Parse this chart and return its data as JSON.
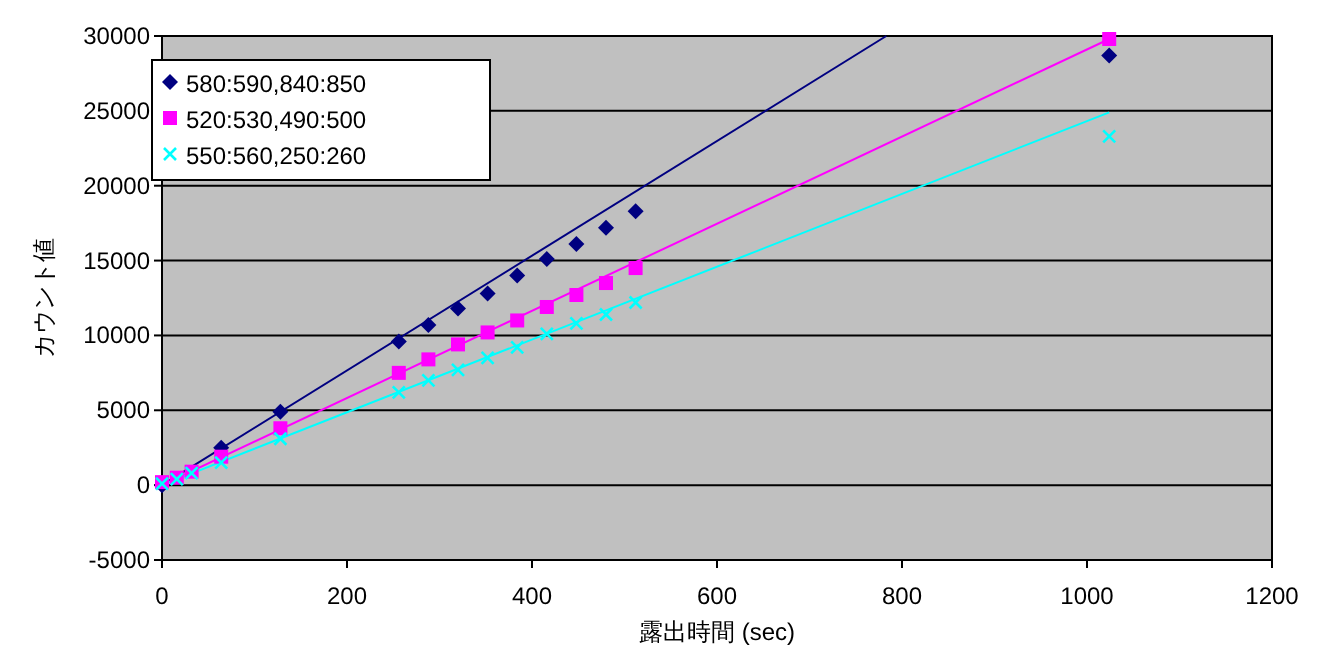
{
  "chart_data": {
    "type": "scatter",
    "xlabel": "露出時間 (sec)",
    "ylabel": "カウント値",
    "xlim": [
      0,
      1200
    ],
    "xticks": [
      0,
      200,
      400,
      600,
      800,
      1000,
      1200
    ],
    "ylim": [
      -5000,
      30000
    ],
    "yticks": [
      -5000,
      0,
      5000,
      10000,
      15000,
      20000,
      25000,
      30000
    ],
    "grid": "y",
    "legend": "top left",
    "x": [
      0,
      16,
      32,
      64,
      128,
      256,
      288,
      320,
      352,
      384,
      416,
      448,
      480,
      512,
      1024
    ],
    "series": [
      {
        "name": "580:590,840:850",
        "color": "#000080",
        "marker": "diamond",
        "values": [
          0,
          null,
          null,
          2500,
          4900,
          9600,
          10700,
          11800,
          12800,
          14000,
          15100,
          16100,
          17200,
          18300,
          28700
        ]
      },
      {
        "name": "520:530,490:500",
        "color": "#ff00ff",
        "marker": "square",
        "values": [
          200,
          500,
          900,
          1900,
          3800,
          7500,
          8400,
          9400,
          10200,
          11000,
          11900,
          12700,
          13500,
          14500,
          29800
        ]
      },
      {
        "name": "550:560,250:260",
        "color": "#00ffff",
        "marker": "cross",
        "values": [
          100,
          400,
          800,
          1500,
          3100,
          6200,
          7000,
          7700,
          8500,
          9200,
          10100,
          10800,
          11400,
          12200,
          23300
        ]
      },
      {
        "type": "line",
        "color": "#000080",
        "x": [
          0,
          783
        ],
        "values": [
          0,
          30000
        ]
      },
      {
        "type": "line",
        "color": "#ff00ff",
        "x": [
          0,
          1024
        ],
        "values": [
          0,
          29800
        ]
      },
      {
        "type": "line",
        "color": "#00ffff",
        "x": [
          0,
          1024
        ],
        "values": [
          0,
          24900
        ]
      }
    ]
  }
}
